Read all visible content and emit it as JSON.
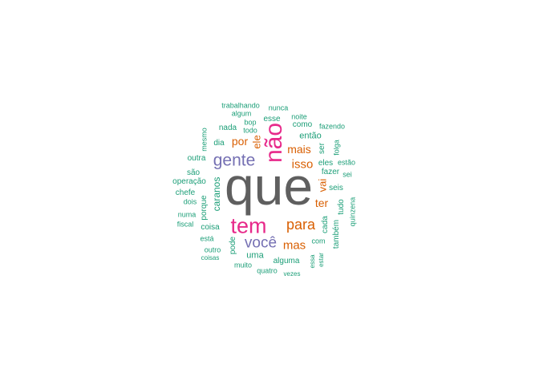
{
  "title": "",
  "colors": {
    "grey": "#5f5f5f",
    "teal": "#1b9e77",
    "orange": "#d95f02",
    "purple": "#7570b3",
    "pink": "#e7298a"
  },
  "words": [
    {
      "text": "que",
      "color": "grey"
    },
    {
      "text": "não",
      "color": "pink"
    },
    {
      "text": "tem",
      "color": "pink"
    },
    {
      "text": "gente",
      "color": "purple"
    },
    {
      "text": "você",
      "color": "purple"
    },
    {
      "text": "para",
      "color": "orange"
    },
    {
      "text": "mas",
      "color": "orange"
    },
    {
      "text": "isso",
      "color": "orange"
    },
    {
      "text": "mais",
      "color": "orange"
    },
    {
      "text": "por",
      "color": "orange"
    },
    {
      "text": "ele",
      "color": "orange"
    },
    {
      "text": "ter",
      "color": "orange"
    },
    {
      "text": "vai",
      "color": "orange"
    },
    {
      "text": "caranos",
      "color": "teal"
    },
    {
      "text": "porque",
      "color": "teal"
    },
    {
      "text": "trabalhando",
      "color": "teal"
    },
    {
      "text": "nunca",
      "color": "teal"
    },
    {
      "text": "algum",
      "color": "teal"
    },
    {
      "text": "esse",
      "color": "teal"
    },
    {
      "text": "noite",
      "color": "teal"
    },
    {
      "text": "como",
      "color": "teal"
    },
    {
      "text": "fazendo",
      "color": "teal"
    },
    {
      "text": "bop",
      "color": "teal"
    },
    {
      "text": "nada",
      "color": "teal"
    },
    {
      "text": "todo",
      "color": "teal"
    },
    {
      "text": "então",
      "color": "teal"
    },
    {
      "text": "mesmo",
      "color": "teal"
    },
    {
      "text": "dia",
      "color": "teal"
    },
    {
      "text": "ser",
      "color": "teal"
    },
    {
      "text": "folga",
      "color": "teal"
    },
    {
      "text": "outra",
      "color": "teal"
    },
    {
      "text": "eles",
      "color": "teal"
    },
    {
      "text": "estão",
      "color": "teal"
    },
    {
      "text": "fazer",
      "color": "teal"
    },
    {
      "text": "sei",
      "color": "teal"
    },
    {
      "text": "são",
      "color": "teal"
    },
    {
      "text": "operação",
      "color": "teal"
    },
    {
      "text": "seis",
      "color": "teal"
    },
    {
      "text": "chefe",
      "color": "teal"
    },
    {
      "text": "dois",
      "color": "teal"
    },
    {
      "text": "tudo",
      "color": "teal"
    },
    {
      "text": "quinzena",
      "color": "teal"
    },
    {
      "text": "numa",
      "color": "teal"
    },
    {
      "text": "fiscal",
      "color": "teal"
    },
    {
      "text": "coisa",
      "color": "teal"
    },
    {
      "text": "cada",
      "color": "teal"
    },
    {
      "text": "também",
      "color": "teal"
    },
    {
      "text": "pode",
      "color": "teal"
    },
    {
      "text": "está",
      "color": "teal"
    },
    {
      "text": "com",
      "color": "teal"
    },
    {
      "text": "outro",
      "color": "teal"
    },
    {
      "text": "coisas",
      "color": "teal"
    },
    {
      "text": "uma",
      "color": "teal"
    },
    {
      "text": "alguma",
      "color": "teal"
    },
    {
      "text": "essa",
      "color": "teal"
    },
    {
      "text": "estar",
      "color": "teal"
    },
    {
      "text": "muito",
      "color": "teal"
    },
    {
      "text": "quatro",
      "color": "teal"
    },
    {
      "text": "vezes",
      "color": "teal"
    }
  ]
}
